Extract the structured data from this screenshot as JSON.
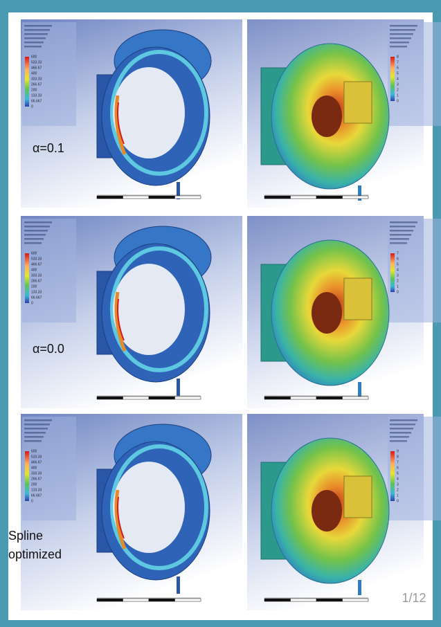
{
  "slide": {
    "page_indicator": "1/12",
    "rows": [
      {
        "label": [
          "α=0.1"
        ],
        "displacement_legend": [
          "8",
          "7",
          "6",
          "5",
          "4",
          "3",
          "2",
          "1",
          "0"
        ]
      },
      {
        "label": [
          "α=0.0"
        ],
        "displacement_legend": [
          "7",
          "6",
          "5",
          "4",
          "3",
          "2",
          "1",
          "0"
        ]
      },
      {
        "label": [
          "Spline",
          "optimized"
        ],
        "displacement_legend": [
          "9",
          "8",
          "7",
          "6",
          "5",
          "4",
          "3",
          "2",
          "1",
          "0"
        ]
      }
    ],
    "stress_legend": [
      "600",
      "533.33",
      "466.67",
      "400",
      "333.33",
      "266.67",
      "200",
      "133.33",
      "66.667",
      "0"
    ]
  }
}
